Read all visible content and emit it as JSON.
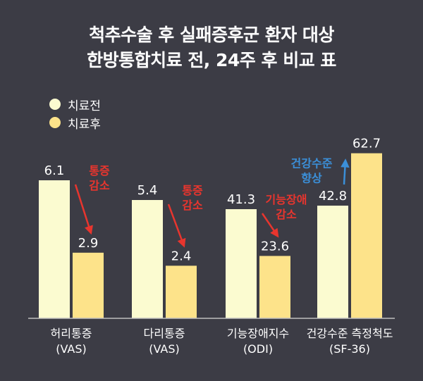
{
  "title": {
    "line1": "척추수술 후 실패증후군 환자 대상",
    "line2": "한방통합치료 전, 24주 후 비교 표"
  },
  "legend": [
    {
      "label": "치료전",
      "color": "#fbfbd0"
    },
    {
      "label": "치료후",
      "color": "#fde38a"
    }
  ],
  "colors": {
    "background": "#3c3c45",
    "axis": "#bfbfbf",
    "arrow_decrease": "#e8352e",
    "arrow_increase": "#3b8fd8"
  },
  "chart_data": {
    "type": "bar",
    "groups": [
      {
        "label": "허리통증",
        "sub": "(VAS)",
        "before": 6.1,
        "after": 2.9,
        "annotation": [
          "통증",
          "감소"
        ],
        "direction": "decrease"
      },
      {
        "label": "다리통증",
        "sub": "(VAS)",
        "before": 5.4,
        "after": 2.4,
        "annotation": [
          "통증",
          "감소"
        ],
        "direction": "decrease"
      },
      {
        "label": "기능장애지수",
        "sub": "(ODI)",
        "before": 41.3,
        "after": 23.6,
        "annotation": [
          "기능장애",
          "감소"
        ],
        "direction": "decrease"
      },
      {
        "label": "건강수준 측정척도",
        "sub": "(SF-36)",
        "before": 42.8,
        "after": 62.7,
        "annotation": [
          "건강수준",
          "향상"
        ],
        "direction": "increase"
      }
    ],
    "series": [
      {
        "name": "치료전"
      },
      {
        "name": "치료후"
      }
    ]
  }
}
